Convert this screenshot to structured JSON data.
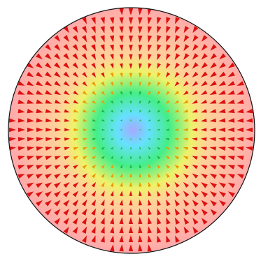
{
  "visualization": {
    "type": "vector-field",
    "pattern": "radial-inward",
    "field_colormap": [
      "#a8a8ff",
      "#66e0ff",
      "#44ee88",
      "#eef26a",
      "#ffd29a",
      "#ffaaaa"
    ],
    "arrow_colors": {
      "outer": "#dd1111",
      "mid": "#ee9900",
      "inner": "#22aa44"
    },
    "border_color": "#111111"
  }
}
